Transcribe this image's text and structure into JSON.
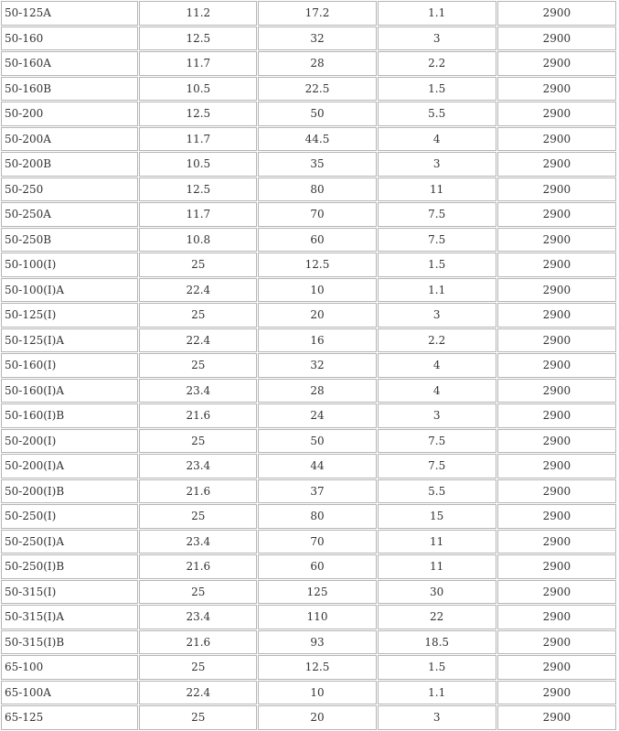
{
  "table": {
    "rows": [
      [
        "50-125A",
        "11.2",
        "17.2",
        "1.1",
        "2900"
      ],
      [
        "50-160",
        "12.5",
        "32",
        "3",
        "2900"
      ],
      [
        "50-160A",
        "11.7",
        "28",
        "2.2",
        "2900"
      ],
      [
        "50-160B",
        "10.5",
        "22.5",
        "1.5",
        "2900"
      ],
      [
        "50-200",
        "12.5",
        "50",
        "5.5",
        "2900"
      ],
      [
        "50-200A",
        "11.7",
        "44.5",
        "4",
        "2900"
      ],
      [
        "50-200B",
        "10.5",
        "35",
        "3",
        "2900"
      ],
      [
        "50-250",
        "12.5",
        "80",
        "11",
        "2900"
      ],
      [
        "50-250A",
        "11.7",
        "70",
        "7.5",
        "2900"
      ],
      [
        "50-250B",
        "10.8",
        "60",
        "7.5",
        "2900"
      ],
      [
        "50-100(I)",
        "25",
        "12.5",
        "1.5",
        "2900"
      ],
      [
        "50-100(I)A",
        "22.4",
        "10",
        "1.1",
        "2900"
      ],
      [
        "50-125(I)",
        "25",
        "20",
        "3",
        "2900"
      ],
      [
        "50-125(I)A",
        "22.4",
        "16",
        "2.2",
        "2900"
      ],
      [
        "50-160(I)",
        "25",
        "32",
        "4",
        "2900"
      ],
      [
        "50-160(I)A",
        "23.4",
        "28",
        "4",
        "2900"
      ],
      [
        "50-160(I)B",
        "21.6",
        "24",
        "3",
        "2900"
      ],
      [
        "50-200(I)",
        "25",
        "50",
        "7.5",
        "2900"
      ],
      [
        "50-200(I)A",
        "23.4",
        "44",
        "7.5",
        "2900"
      ],
      [
        "50-200(I)B",
        "21.6",
        "37",
        "5.5",
        "2900"
      ],
      [
        "50-250(I)",
        "25",
        "80",
        "15",
        "2900"
      ],
      [
        "50-250(I)A",
        "23.4",
        "70",
        "11",
        "2900"
      ],
      [
        "50-250(I)B",
        "21.6",
        "60",
        "11",
        "2900"
      ],
      [
        "50-315(I)",
        "25",
        "125",
        "30",
        "2900"
      ],
      [
        "50-315(I)A",
        "23.4",
        "110",
        "22",
        "2900"
      ],
      [
        "50-315(I)B",
        "21.6",
        "93",
        "18.5",
        "2900"
      ],
      [
        "65-100",
        "25",
        "12.5",
        "1.5",
        "2900"
      ],
      [
        "65-100A",
        "22.4",
        "10",
        "1.1",
        "2900"
      ],
      [
        "65-125",
        "25",
        "20",
        "3",
        "2900"
      ]
    ]
  }
}
